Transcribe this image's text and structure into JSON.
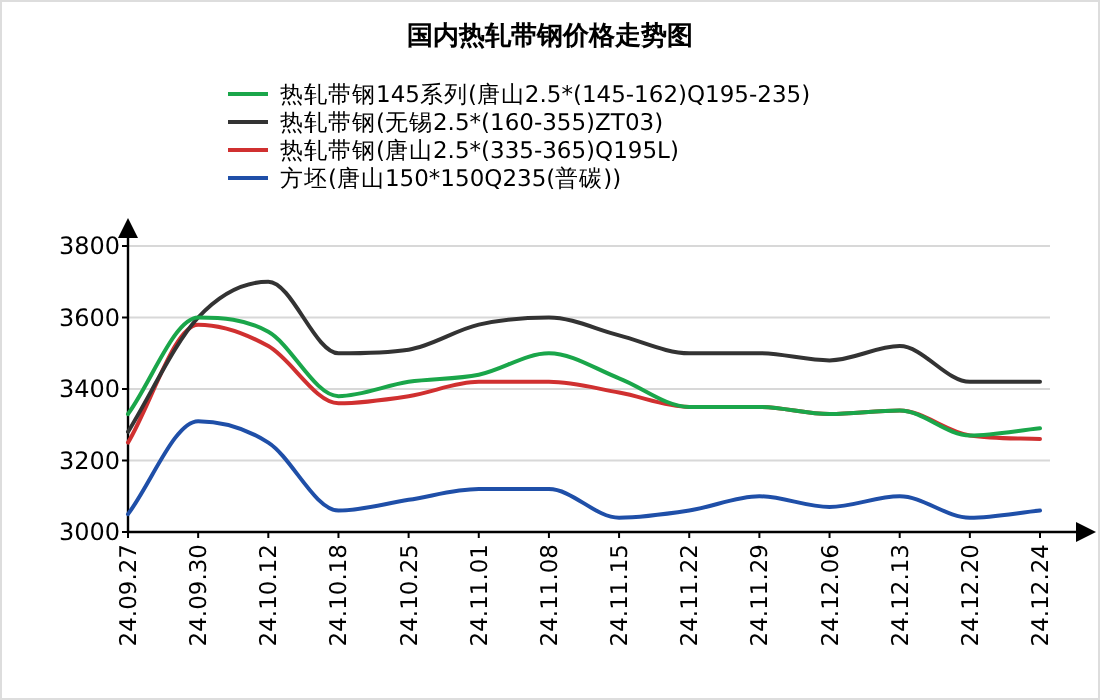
{
  "chart_data": {
    "type": "line",
    "title": "国内热轧带钢价格走势图",
    "categories": [
      "24.09.27",
      "24.09.30",
      "24.10.12",
      "24.10.18",
      "24.10.25",
      "24.11.01",
      "24.11.08",
      "24.11.15",
      "24.11.22",
      "24.11.29",
      "24.12.06",
      "24.12.13",
      "24.12.20",
      "24.12.24"
    ],
    "series": [
      {
        "name": "热轧带钢145系列(唐山2.5*(145-162)Q195-235)",
        "color": "#1aa64a",
        "values": [
          3330,
          3600,
          3560,
          3380,
          3420,
          3440,
          3500,
          3430,
          3350,
          3350,
          3330,
          3340,
          3270,
          3290
        ]
      },
      {
        "name": "热轧带钢(无锡2.5*(160-355)ZT03)",
        "color": "#333333",
        "values": [
          3280,
          3600,
          3700,
          3500,
          3510,
          3580,
          3600,
          3550,
          3500,
          3500,
          3480,
          3520,
          3420,
          3420
        ]
      },
      {
        "name": "热轧带钢(唐山2.5*(335-365)Q195L)",
        "color": "#d03030",
        "values": [
          3250,
          3580,
          3520,
          3360,
          3380,
          3420,
          3420,
          3390,
          3350,
          3350,
          3330,
          3340,
          3270,
          3260
        ]
      },
      {
        "name": "方坯(唐山150*150Q235(普碳))",
        "color": "#1f4fa8",
        "values": [
          3050,
          3310,
          3250,
          3060,
          3090,
          3120,
          3120,
          3040,
          3060,
          3100,
          3070,
          3100,
          3040,
          3060
        ]
      }
    ],
    "ylim": [
      3000,
      3800
    ],
    "yticks": [
      3000,
      3200,
      3400,
      3600,
      3800
    ],
    "grid": "y",
    "legend": "top"
  }
}
